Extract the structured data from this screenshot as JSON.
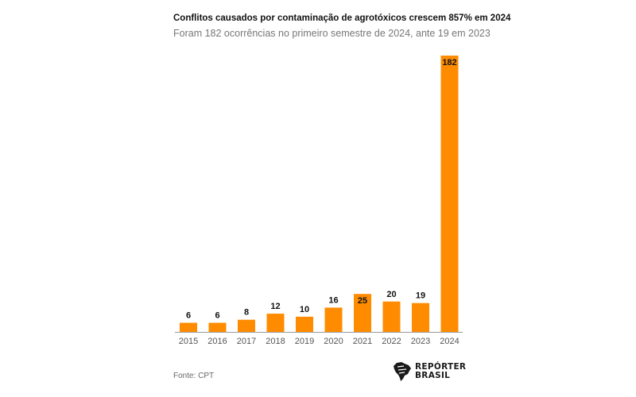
{
  "title": "Conflitos causados por contaminação de agrotóxicos crescem 857% em 2024",
  "subtitle": "Foram 182 ocorrências no primeiro semestre de 2024, ante 19 em 2023",
  "source": "Fonte: CPT",
  "logo": {
    "line1": "REPÓRTER",
    "line2": "BRASIL"
  },
  "colors": {
    "bar": "#ff8c00",
    "axis": "#999999",
    "label": "#111111"
  },
  "chart_data": {
    "type": "bar",
    "title": "Conflitos causados por contaminação de agrotóxicos crescem 857% em 2024",
    "subtitle": "Foram 182 ocorrências no primeiro semestre de 2024, ante 19 em 2023",
    "categories": [
      "2015",
      "2016",
      "2017",
      "2018",
      "2019",
      "2020",
      "2021",
      "2022",
      "2023",
      "2024"
    ],
    "values": [
      6,
      6,
      8,
      12,
      10,
      16,
      25,
      20,
      19,
      182
    ],
    "ylim": [
      0,
      182
    ],
    "grid": false,
    "data_labels": true
  }
}
